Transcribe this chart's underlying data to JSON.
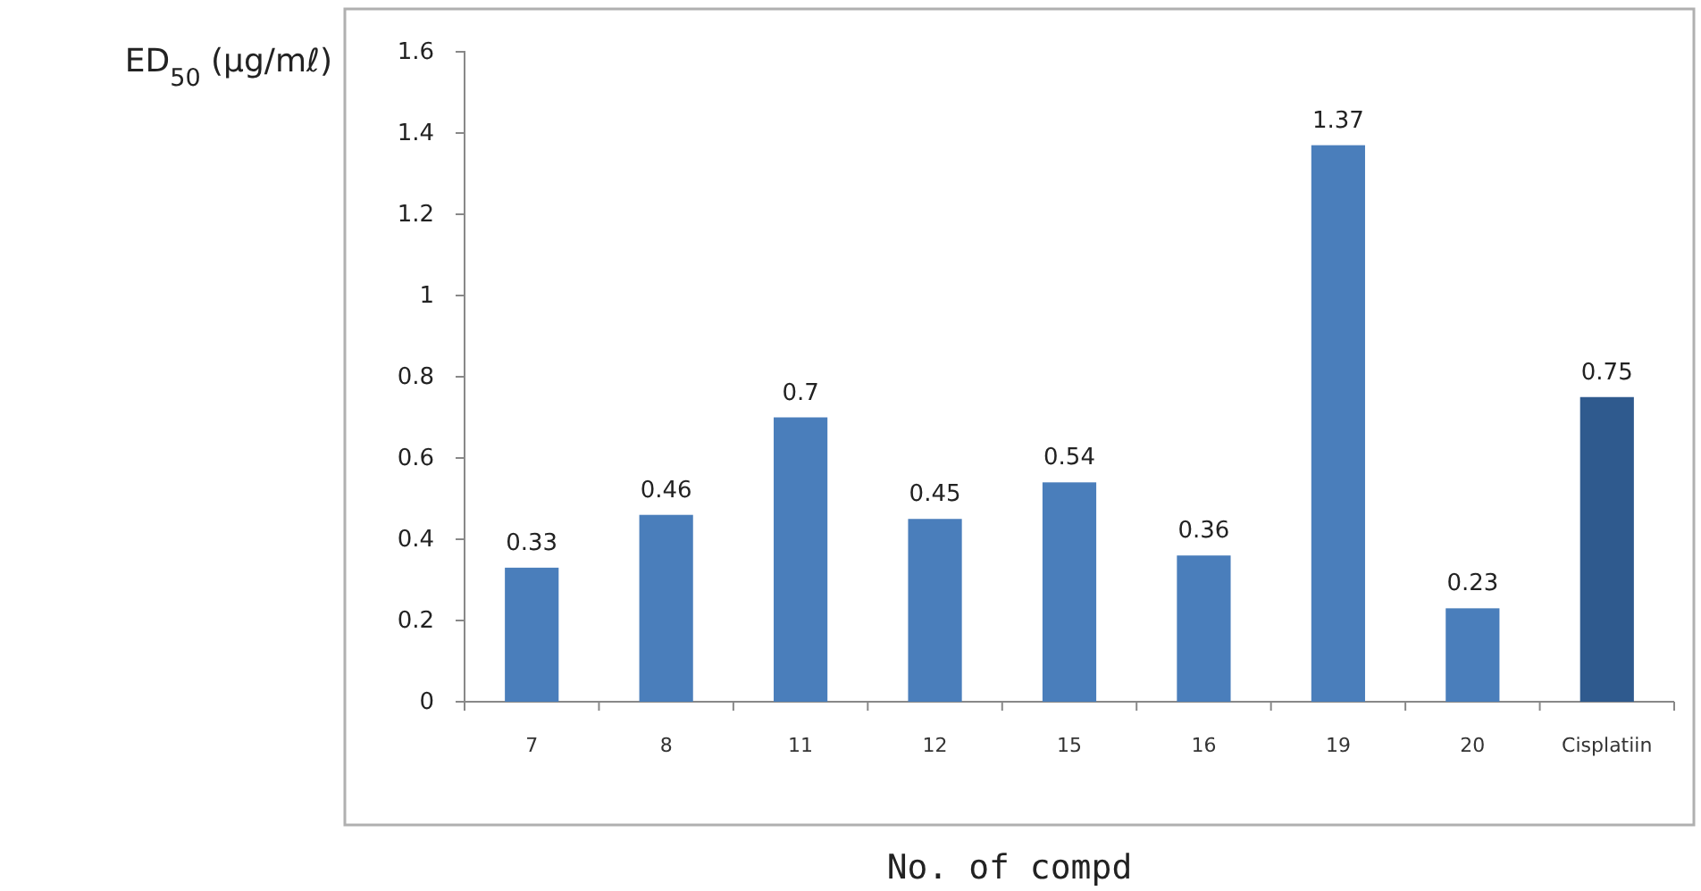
{
  "chart_data": {
    "type": "bar",
    "xlabel": "No. of compd",
    "ylabel": "ED$_{50}$ (μg/mℓ)",
    "categories": [
      "7",
      "8",
      "11",
      "12",
      "15",
      "16",
      "19",
      "20",
      "Cisplatiin"
    ],
    "values": [
      0.33,
      0.46,
      0.7,
      0.45,
      0.54,
      0.36,
      1.37,
      0.23,
      0.75
    ],
    "colors": [
      "#4a7ebb",
      "#4a7ebb",
      "#4a7ebb",
      "#4a7ebb",
      "#4a7ebb",
      "#4a7ebb",
      "#4a7ebb",
      "#4a7ebb",
      "#2f5a8e"
    ],
    "ylim": [
      0,
      1.6
    ],
    "yticks": [
      0,
      0.2,
      0.4,
      0.6,
      0.8,
      1,
      1.2,
      1.4,
      1.6
    ],
    "data_labels": true,
    "grid": false
  }
}
